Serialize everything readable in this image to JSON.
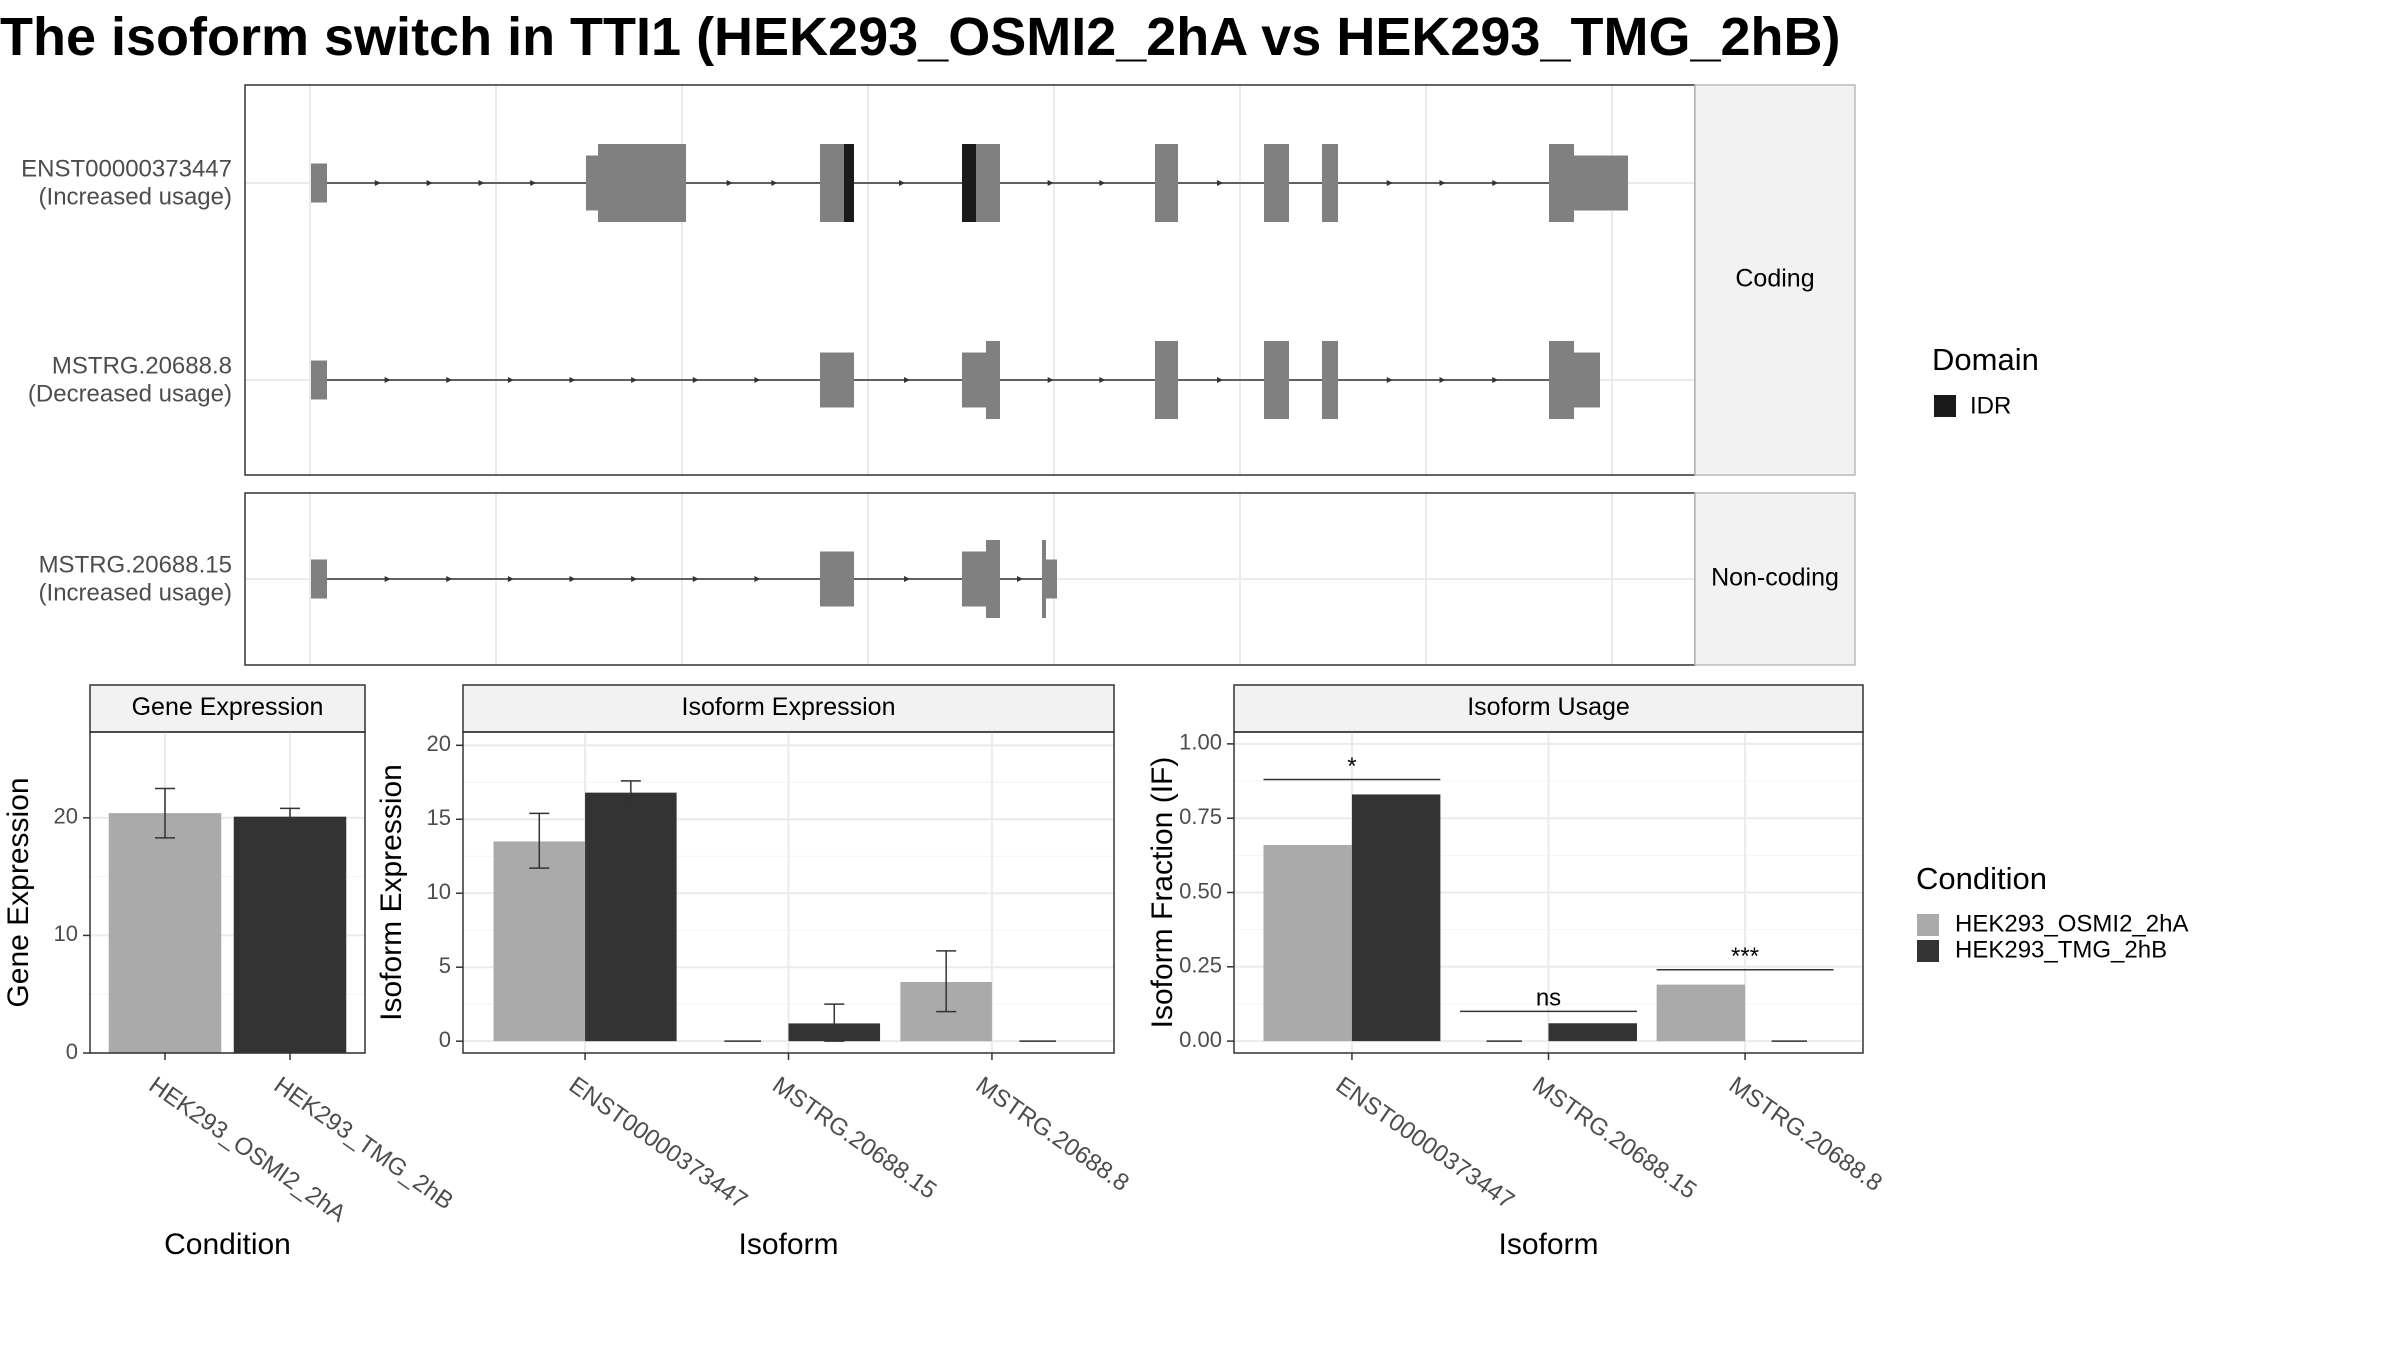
{
  "title": "The isoform switch in TTI1 (HEK293_OSMI2_2hA vs HEK293_TMG_2hB)",
  "colors": {
    "exon": "#808080",
    "idr": "#1a1a1a",
    "cond1": "#aaaaaa",
    "cond2": "#333333",
    "grid": "#ebebeb",
    "strip": "#f2f2f2",
    "border": "#333333"
  },
  "structure": {
    "domain_legend": {
      "title": "Domain",
      "items": [
        {
          "label": "IDR",
          "color": "#1a1a1a"
        }
      ]
    },
    "facets": [
      {
        "label": "Coding",
        "isoforms": [
          {
            "id": "ENST00000373447",
            "usage": "(Increased usage)"
          },
          {
            "id": "MSTRG.20688.8",
            "usage": "(Decreased usage)"
          }
        ]
      },
      {
        "label": "Non-coding",
        "isoforms": [
          {
            "id": "MSTRG.20688.15",
            "usage": "(Increased usage)"
          }
        ]
      }
    ]
  },
  "chart_data": [
    {
      "type": "bar",
      "title": "Gene Expression",
      "xlabel": "Condition",
      "ylabel": "Gene Expression",
      "ylim": [
        0,
        27.3
      ],
      "yticks": [
        0,
        10,
        20
      ],
      "categories": [
        "HEK293_OSMI2_2hA",
        "HEK293_TMG_2hB"
      ],
      "series": [
        {
          "name": "HEK293_OSMI2_2hA",
          "values": [
            20.4,
            null
          ],
          "err_low": [
            18.3,
            null
          ],
          "err_high": [
            22.5,
            null
          ]
        },
        {
          "name": "HEK293_TMG_2hB",
          "values": [
            null,
            20.1
          ],
          "err_low": [
            null,
            19.5
          ],
          "err_high": [
            null,
            20.8
          ]
        }
      ]
    },
    {
      "type": "bar",
      "title": "Isoform Expression",
      "xlabel": "Isoform",
      "ylabel": "Isoform Expression",
      "ylim": [
        -0.8,
        20.9
      ],
      "yticks": [
        0,
        5,
        10,
        15,
        20
      ],
      "categories": [
        "ENST00000373447",
        "MSTRG.20688.15",
        "MSTRG.20688.8"
      ],
      "series": [
        {
          "name": "HEK293_OSMI2_2hA",
          "values": [
            13.5,
            0,
            4.0
          ],
          "err_low": [
            11.7,
            0,
            2.0
          ],
          "err_high": [
            15.4,
            0,
            6.1
          ]
        },
        {
          "name": "HEK293_TMG_2hB",
          "values": [
            16.8,
            1.2,
            0
          ],
          "err_low": [
            16.1,
            0.0,
            0
          ],
          "err_high": [
            17.6,
            2.5,
            0
          ]
        }
      ]
    },
    {
      "type": "bar",
      "title": "Isoform Usage",
      "xlabel": "Isoform",
      "ylabel": "Isoform Fraction (IF)",
      "ylim": [
        -0.04,
        1.04
      ],
      "yticks": [
        0.0,
        0.25,
        0.5,
        0.75,
        1.0
      ],
      "ytick_labels": [
        "0.00",
        "0.25",
        "0.50",
        "0.75",
        "1.00"
      ],
      "categories": [
        "ENST00000373447",
        "MSTRG.20688.15",
        "MSTRG.20688.8"
      ],
      "series": [
        {
          "name": "HEK293_OSMI2_2hA",
          "values": [
            0.66,
            0.0,
            0.19
          ]
        },
        {
          "name": "HEK293_TMG_2hB",
          "values": [
            0.83,
            0.06,
            0.0
          ]
        }
      ],
      "significance": [
        {
          "category": "ENST00000373447",
          "label": "*",
          "y": 0.88
        },
        {
          "category": "MSTRG.20688.15",
          "label": "ns",
          "y": 0.1
        },
        {
          "category": "MSTRG.20688.8",
          "label": "***",
          "y": 0.24
        }
      ]
    }
  ],
  "condition_legend": {
    "title": "Condition",
    "items": [
      {
        "label": "HEK293_OSMI2_2hA",
        "color": "#aaaaaa"
      },
      {
        "label": "HEK293_TMG_2hB",
        "color": "#333333"
      }
    ]
  }
}
